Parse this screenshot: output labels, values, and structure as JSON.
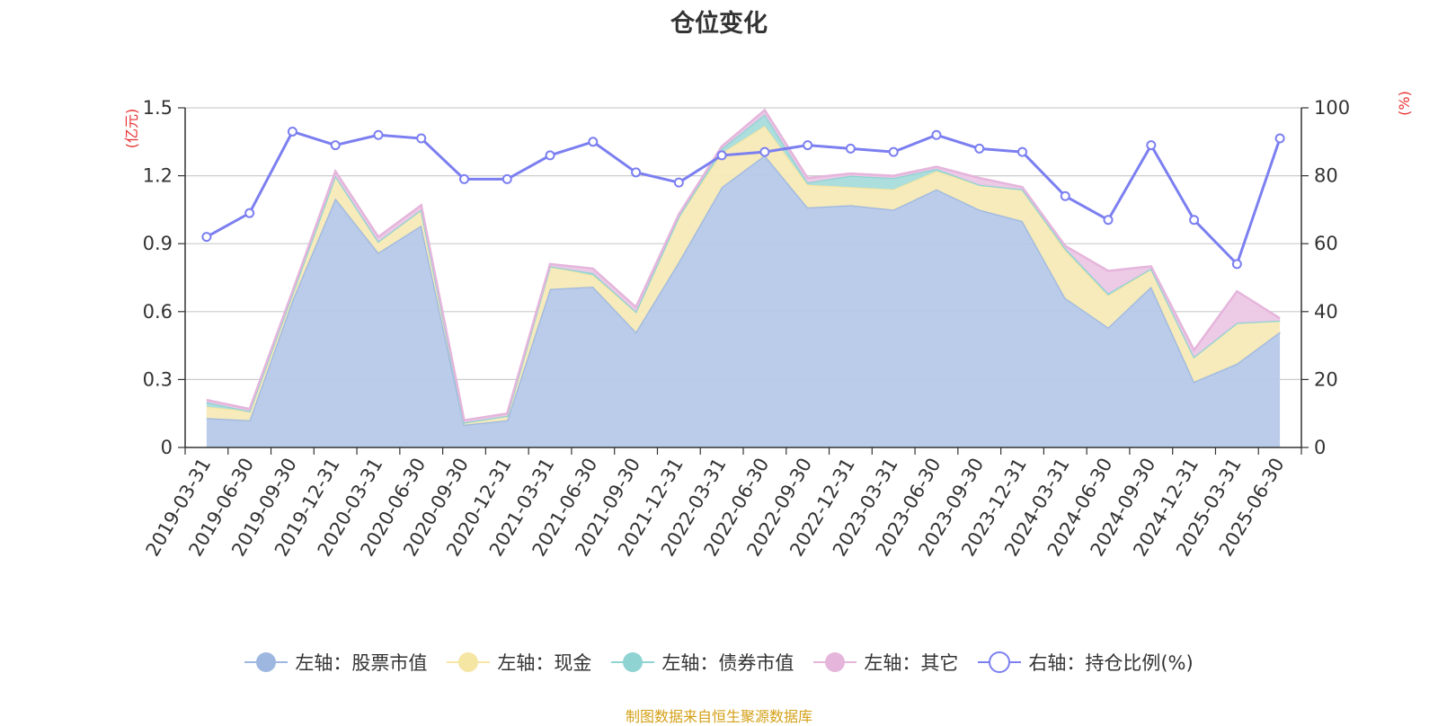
{
  "chart_data": {
    "type": "area",
    "title": "仓位变化",
    "left_axis_unit": "(亿元)",
    "right_axis_unit": "(%)",
    "ylim_left": [
      0,
      1.5
    ],
    "yticks_left": [
      "0",
      "0.3",
      "0.6",
      "0.9",
      "1.2",
      "1.5"
    ],
    "ylim_right": [
      0,
      100
    ],
    "yticks_right": [
      "0",
      "20",
      "40",
      "60",
      "80",
      "100"
    ],
    "grid": true,
    "legend_position": "bottom",
    "categories": [
      "2019-03-31",
      "2019-06-30",
      "2019-09-30",
      "2019-12-31",
      "2020-03-31",
      "2020-06-30",
      "2020-09-30",
      "2020-12-31",
      "2021-03-31",
      "2021-06-30",
      "2021-09-30",
      "2021-12-31",
      "2022-03-31",
      "2022-06-30",
      "2022-09-30",
      "2022-12-31",
      "2023-03-31",
      "2023-06-30",
      "2023-09-30",
      "2023-12-31",
      "2024-03-31",
      "2024-06-30",
      "2024-09-30",
      "2024-12-31",
      "2025-03-31",
      "2025-06-30"
    ],
    "series": [
      {
        "name": "左轴：股票市值",
        "axis": "left",
        "stacked": true,
        "color": "#9db7e0",
        "fill": "#b6c9e9",
        "values": [
          0.13,
          0.12,
          0.65,
          1.1,
          0.86,
          0.98,
          0.1,
          0.12,
          0.7,
          0.71,
          0.51,
          0.82,
          1.15,
          1.29,
          1.06,
          1.07,
          1.05,
          1.14,
          1.05,
          1.0,
          0.66,
          0.53,
          0.71,
          0.29,
          0.37,
          0.51
        ]
      },
      {
        "name": "左轴：现金",
        "axis": "left",
        "stacked": true,
        "color": "#f5e6a3",
        "fill": "#f7eab8",
        "values": [
          0.05,
          0.04,
          0.03,
          0.1,
          0.05,
          0.07,
          0.01,
          0.02,
          0.1,
          0.05,
          0.09,
          0.2,
          0.15,
          0.13,
          0.1,
          0.08,
          0.09,
          0.08,
          0.11,
          0.14,
          0.21,
          0.14,
          0.08,
          0.11,
          0.18,
          0.05
        ]
      },
      {
        "name": "左轴：债券市值",
        "axis": "left",
        "stacked": true,
        "color": "#8fd3d3",
        "fill": "#a9dcdc",
        "values": [
          0.02,
          0.0,
          0.0,
          0.0,
          0.0,
          0.0,
          0.0,
          0.0,
          0.0,
          0.01,
          0.0,
          0.0,
          0.02,
          0.05,
          0.01,
          0.05,
          0.05,
          0.01,
          0.0,
          0.0,
          0.01,
          0.01,
          0.0,
          0.0,
          0.0,
          0.0
        ]
      },
      {
        "name": "左轴：其它",
        "axis": "left",
        "stacked": true,
        "color": "#e5b5dc",
        "fill": "#ecc8e5",
        "values": [
          0.01,
          0.01,
          0.01,
          0.02,
          0.02,
          0.02,
          0.01,
          0.01,
          0.01,
          0.02,
          0.02,
          0.01,
          0.01,
          0.02,
          0.02,
          0.01,
          0.01,
          0.01,
          0.03,
          0.01,
          0.01,
          0.1,
          0.01,
          0.03,
          0.14,
          0.01
        ]
      },
      {
        "name": "右轴：持仓比例(%)",
        "axis": "right",
        "stacked": false,
        "color": "#7b7ff0",
        "values": [
          62,
          69,
          93,
          89,
          92,
          91,
          79,
          79,
          86,
          90,
          81,
          78,
          86,
          87,
          89,
          88,
          87,
          92,
          88,
          87,
          74,
          67,
          89,
          67,
          54,
          91
        ]
      }
    ]
  },
  "source_note": "制图数据来自恒生聚源数据库"
}
